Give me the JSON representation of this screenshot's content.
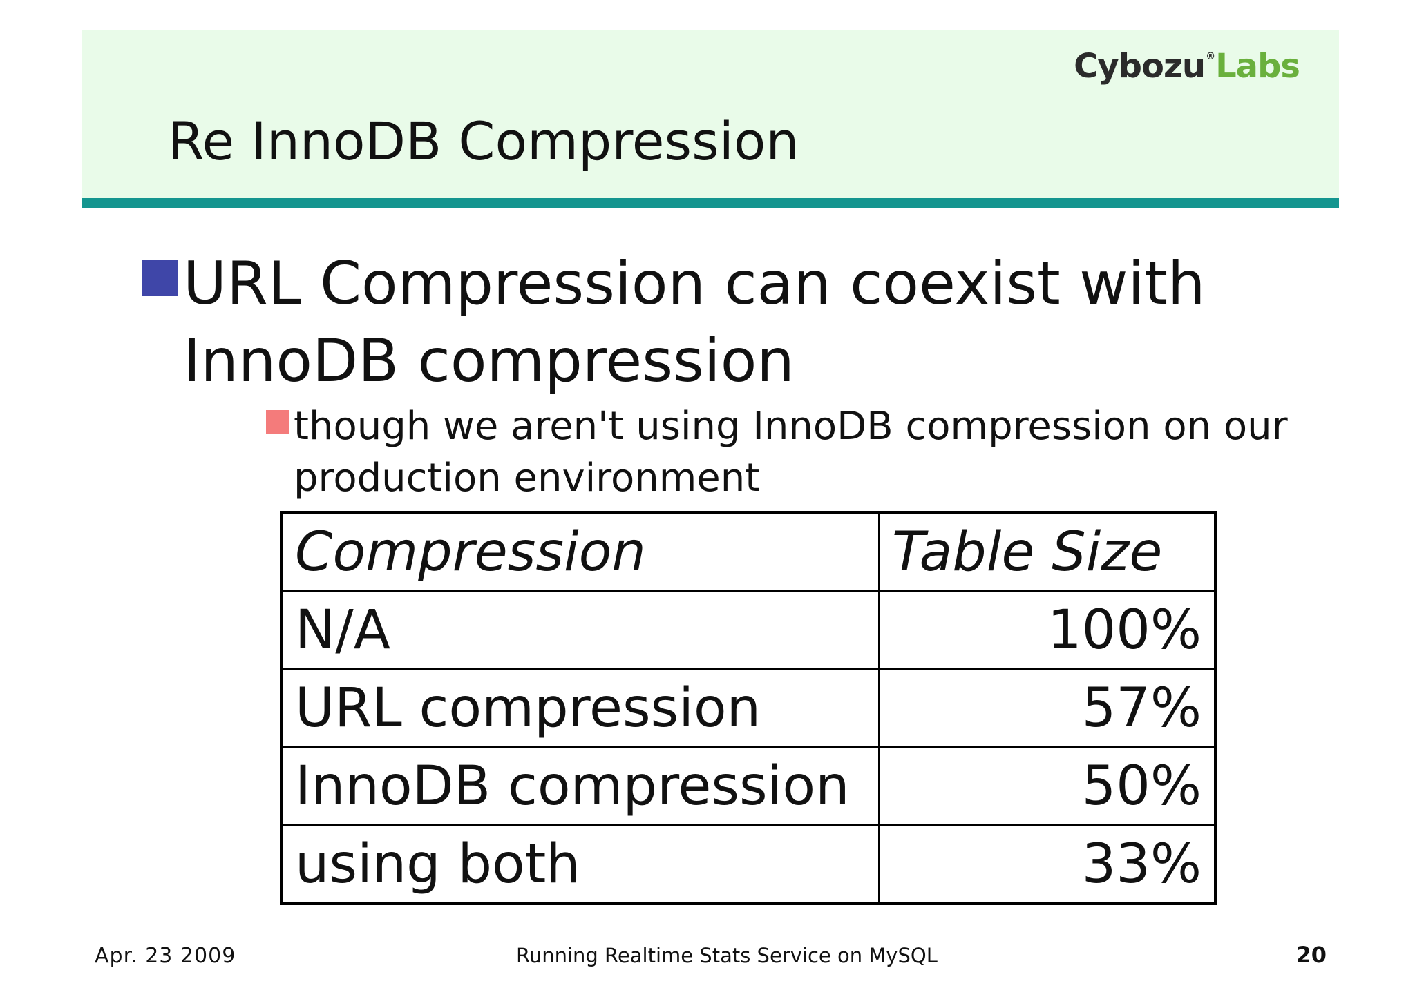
{
  "header": {
    "logo_primary": "Cybozu",
    "logo_registered": "®",
    "logo_secondary": "Labs",
    "title": "Re InnoDB Compression"
  },
  "bullets": {
    "level1": "URL Compression can coexist with InnoDB compression",
    "level2": "though we aren't using InnoDB compression on our production environment"
  },
  "table": {
    "headers": [
      "Compression",
      "Table Size"
    ],
    "rows": [
      {
        "compression": "N/A",
        "size": "100%"
      },
      {
        "compression": "URL compression",
        "size": "57%"
      },
      {
        "compression": "InnoDB compression",
        "size": "50%"
      },
      {
        "compression": "using both",
        "size": "33%"
      }
    ]
  },
  "footer": {
    "date": "Apr. 23 2009",
    "title": "Running Realtime Stats Service on MySQL",
    "page": "20"
  },
  "colors": {
    "header_band": "#e9fbe9",
    "header_rule": "#14958f",
    "bullet_l1": "#3f46a8",
    "bullet_l2": "#f47b7b",
    "logo_labs": "#6ab03d"
  }
}
